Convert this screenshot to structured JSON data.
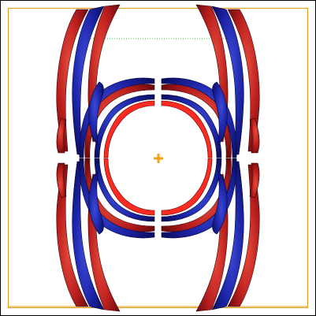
{
  "viewport": {
    "background": "#ffffff",
    "frame_color": "#000000",
    "bounding_box_color": "#e69a1a",
    "guide_line_color": "#39c439",
    "center_marker_color": "#f4a015"
  },
  "isosurface": {
    "positive_color": "#c02424",
    "positive_shade": "#7a0f10",
    "negative_color": "#1f2ab0",
    "negative_shade": "#0a0f6e",
    "core_positive": "#ff2020",
    "core_negative": "#1a1aff",
    "lobes": [
      "outer-top-left",
      "outer-top-right",
      "outer-bottom-left",
      "outer-bottom-right",
      "inner-top-left",
      "inner-top-right",
      "inner-bottom-left",
      "inner-bottom-right"
    ]
  }
}
